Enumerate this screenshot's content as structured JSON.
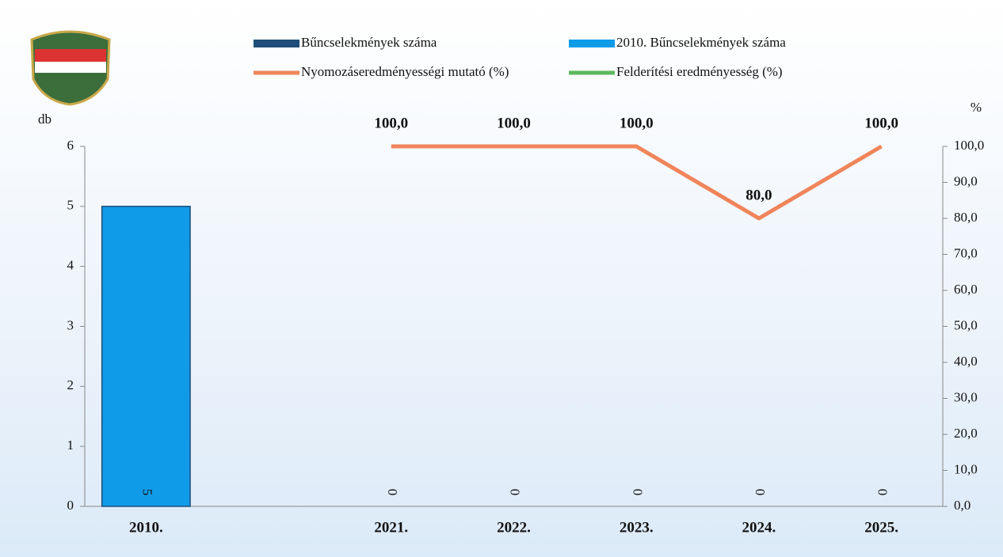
{
  "chart_data": {
    "type": "bar",
    "categories": [
      "2010.",
      null,
      "2021.",
      "2022.",
      "2023.",
      "2024.",
      "2025."
    ],
    "series": [
      {
        "name": "Bűncselekmények száma",
        "color": "#1f4e79",
        "values": [
          null,
          null,
          0,
          0,
          0,
          0,
          0
        ]
      },
      {
        "name": "2010. Bűncselekmények száma",
        "color": "#0f9be8",
        "values": [
          5,
          null,
          null,
          null,
          null,
          null,
          null
        ]
      },
      {
        "name": "Nyomozáseredményességi mutató (%)",
        "color": "#f0845a",
        "type": "line",
        "axis": "y2",
        "values": [
          null,
          null,
          100,
          100,
          100,
          80,
          100
        ],
        "value_labels": [
          null,
          null,
          "100,0",
          "100,0",
          "100,0",
          "80,0",
          "100,0"
        ]
      },
      {
        "name": "Felderítési eredményesség (%)",
        "color": "#5cb85c",
        "type": "line",
        "axis": "y2",
        "values": [
          null,
          null,
          null,
          null,
          null,
          null,
          null
        ]
      }
    ],
    "ylabel": "db",
    "y2label": "%",
    "ylim": [
      0,
      6
    ],
    "yticks": [
      0,
      1,
      2,
      3,
      4,
      5,
      6
    ],
    "y2lim": [
      0,
      100
    ],
    "y2ticks": [
      {
        "value": 0,
        "label": "0,0"
      },
      {
        "value": 10,
        "label": "10,0"
      },
      {
        "value": 20,
        "label": "20,0"
      },
      {
        "value": 30,
        "label": "30,0"
      },
      {
        "value": 40,
        "label": "40,0"
      },
      {
        "value": 50,
        "label": "50,0"
      },
      {
        "value": 60,
        "label": "60,0"
      },
      {
        "value": 70,
        "label": "70,0"
      },
      {
        "value": 80,
        "label": "80,0"
      },
      {
        "value": 90,
        "label": "90,0"
      },
      {
        "value": 100,
        "label": "100,0"
      }
    ]
  }
}
